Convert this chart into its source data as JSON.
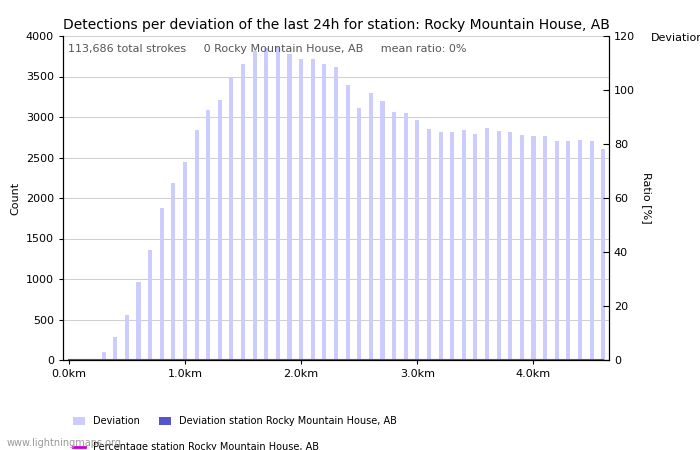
{
  "title": "Detections per deviation of the last 24h for station: Rocky Mountain House, AB",
  "ylabel_left": "Count",
  "ylabel_right": "Ratio [%]",
  "annotation_line": "113,686 total strokes     0 Rocky Mountain House, AB     mean ratio: 0%",
  "xlim": [
    -0.5,
    46.5
  ],
  "ylim_left": [
    0,
    4000
  ],
  "ylim_right": [
    0,
    120
  ],
  "xtick_positions": [
    0,
    10,
    20,
    30,
    40
  ],
  "xtick_labels": [
    "0.0km",
    "1.0km",
    "2.0km",
    "3.0km",
    "4.0km"
  ],
  "ytick_left": [
    0,
    500,
    1000,
    1500,
    2000,
    2500,
    3000,
    3500,
    4000
  ],
  "ytick_right": [
    0,
    20,
    40,
    60,
    80,
    100,
    120
  ],
  "background_color": "#ffffff",
  "bar_color_light": "#ccccff",
  "bar_color_dark": "#5555cc",
  "bar_width": 0.35,
  "deviation_values": [
    0,
    0,
    0,
    100,
    290,
    560,
    960,
    1360,
    1880,
    2180,
    2450,
    2840,
    3090,
    3210,
    3480,
    3660,
    3820,
    3850,
    3870,
    3780,
    3720,
    3710,
    3660,
    3620,
    3390,
    3110,
    3300,
    3200,
    3060,
    3050,
    2960,
    2850,
    2820,
    2810,
    2840,
    2790,
    2860,
    2830,
    2810,
    2780,
    2770,
    2770,
    2700,
    2700,
    2720,
    2700,
    2600
  ],
  "station_values": [
    0,
    0,
    0,
    0,
    0,
    0,
    0,
    0,
    0,
    0,
    0,
    0,
    0,
    0,
    0,
    0,
    0,
    0,
    0,
    0,
    0,
    0,
    0,
    0,
    0,
    0,
    0,
    0,
    0,
    0,
    0,
    0,
    0,
    0,
    0,
    0,
    0,
    0,
    0,
    0,
    0,
    0,
    0,
    0,
    0,
    0,
    0
  ],
  "percentage_values": [
    0,
    0,
    0,
    0,
    0,
    0,
    0,
    0,
    0,
    0,
    0,
    0,
    0,
    0,
    0,
    0,
    0,
    0,
    0,
    0,
    0,
    0,
    0,
    0,
    0,
    0,
    0,
    0,
    0,
    0,
    0,
    0,
    0,
    0,
    0,
    0,
    0,
    0,
    0,
    0,
    0,
    0,
    0,
    0,
    0,
    0,
    0
  ],
  "legend_light_label": "Deviation",
  "legend_dark_label": "Deviation station Rocky Mountain House, AB",
  "legend_pct_label": "Percentage station Rocky Mountain House, AB",
  "grid_color": "#bbbbbb",
  "title_fontsize": 10,
  "axis_fontsize": 8,
  "tick_fontsize": 8,
  "annot_fontsize": 8,
  "watermark": "www.lightningmaps.org",
  "right_axis_label": "Deviations",
  "pct_line_color": "#cc00cc"
}
